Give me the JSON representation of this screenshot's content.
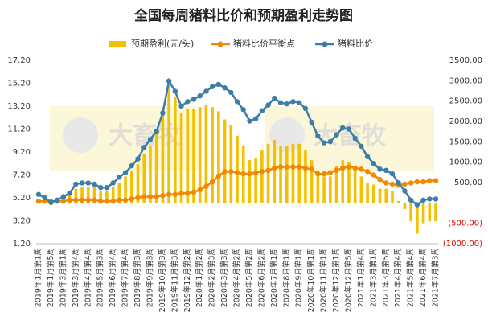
{
  "watermark": "大畜牧",
  "chart_data": {
    "type": "combo",
    "title": "全国每周猪料比价和预期盈利走势图",
    "categories": [
      "2019年1月第1周",
      null,
      "2019年1月第5周",
      null,
      "2019年3月第1周",
      null,
      "2019年3月第4周",
      null,
      "2019年4月第4周",
      null,
      "2019年5月第3周",
      null,
      "2019年6月第4周",
      null,
      "2019年7月第4周",
      null,
      "2019年8月第3周",
      null,
      "2019年9月第3周",
      null,
      "2019年10月第3周",
      null,
      "2019年11月第3周",
      null,
      "2019年12月第2周",
      null,
      "2020年1月第2周",
      null,
      "2020年2月第3周",
      null,
      "2020年3月第3周",
      null,
      "2020年4月第2周",
      null,
      "2020年5月第2周",
      null,
      "2020年6月第2周",
      null,
      "2020年7月第1周",
      null,
      "2020年8月第1周",
      null,
      "2020年9月第1周",
      null,
      "2020年10月第1周",
      null,
      "2020年11月第1周",
      null,
      "2020年12月第1周",
      null,
      "2020年12月第5周",
      null,
      "2021年1月第4周",
      null,
      "2021年3月第1周",
      null,
      "2021年3月第5周",
      null,
      "2021年4月第4周",
      null,
      "2021年5月第4周",
      null,
      "2021年6月第4周",
      null,
      "2021年7月第3周"
    ],
    "series": [
      {
        "name": "预期盈利(元/头)",
        "type": "bar",
        "axis": "y2",
        "color": "#f5c000",
        "values": [
          50,
          0,
          -50,
          30,
          100,
          200,
          350,
          380,
          400,
          380,
          300,
          300,
          400,
          500,
          650,
          800,
          950,
          1200,
          1400,
          1700,
          2200,
          2900,
          2600,
          2200,
          2300,
          2300,
          2350,
          2400,
          2350,
          2250,
          2050,
          1900,
          1650,
          1400,
          1050,
          1100,
          1300,
          1450,
          1550,
          1400,
          1400,
          1450,
          1450,
          1300,
          1050,
          800,
          650,
          650,
          900,
          1050,
          1000,
          800,
          650,
          500,
          450,
          350,
          350,
          300,
          50,
          -150,
          -450,
          -750,
          -500,
          -450,
          -450
        ]
      },
      {
        "name": "猪料比价平衡点",
        "type": "line",
        "color": "#f08a00",
        "values": [
          4.9,
          4.9,
          4.9,
          4.9,
          4.9,
          5.0,
          5.0,
          5.0,
          5.0,
          5.0,
          4.9,
          4.9,
          4.9,
          5.0,
          5.0,
          5.1,
          5.2,
          5.3,
          5.3,
          5.3,
          5.4,
          5.5,
          5.5,
          5.6,
          5.6,
          5.7,
          5.9,
          6.2,
          6.6,
          7.1,
          7.5,
          7.5,
          7.4,
          7.3,
          7.3,
          7.4,
          7.5,
          7.6,
          7.8,
          7.9,
          7.9,
          7.9,
          7.9,
          7.8,
          7.7,
          7.3,
          7.3,
          7.4,
          7.6,
          7.8,
          7.9,
          7.8,
          7.7,
          7.5,
          7.2,
          6.8,
          6.5,
          6.4,
          6.3,
          6.4,
          6.5,
          6.6,
          6.6,
          6.7,
          6.7
        ]
      },
      {
        "name": "猪料比价",
        "type": "line",
        "color": "#3d7ea6",
        "values": [
          5.5,
          5.2,
          4.8,
          5.0,
          5.3,
          5.6,
          6.4,
          6.5,
          6.5,
          6.4,
          6.1,
          6.1,
          6.5,
          7.0,
          7.4,
          8.0,
          8.6,
          9.6,
          10.3,
          11.0,
          12.6,
          15.4,
          14.5,
          13.2,
          13.6,
          13.8,
          14.1,
          14.5,
          14.9,
          15.1,
          14.8,
          14.4,
          13.6,
          12.9,
          11.9,
          12.1,
          12.8,
          13.3,
          13.9,
          13.5,
          13.4,
          13.6,
          13.5,
          13.0,
          11.8,
          10.6,
          10.0,
          10.1,
          10.7,
          11.3,
          11.2,
          10.4,
          9.7,
          8.8,
          8.2,
          7.7,
          7.6,
          7.3,
          6.5,
          5.8,
          5.0,
          4.6,
          5.0,
          5.1,
          5.1
        ]
      }
    ],
    "ylim": [
      1.2,
      17.2
    ],
    "yticks": [
      {
        "value": 1.2,
        "label": "1.20"
      },
      {
        "value": 3.2,
        "label": "3.20"
      },
      {
        "value": 5.2,
        "label": "5.20"
      },
      {
        "value": 7.2,
        "label": "7.20"
      },
      {
        "value": 9.2,
        "label": "9.20"
      },
      {
        "value": 11.2,
        "label": "11.20"
      },
      {
        "value": 13.2,
        "label": "13.20"
      },
      {
        "value": 15.2,
        "label": "15.20"
      },
      {
        "value": 17.2,
        "label": "17.20"
      }
    ],
    "y2lim": [
      -1000,
      3500
    ],
    "y2ticks": [
      {
        "value": 3500,
        "label": "3500.00"
      },
      {
        "value": 3000,
        "label": "3000.00"
      },
      {
        "value": 2500,
        "label": "2500.00"
      },
      {
        "value": 2000,
        "label": "2000.00"
      },
      {
        "value": 1500,
        "label": "1500.00"
      },
      {
        "value": 1000,
        "label": "1000.00"
      },
      {
        "value": 500,
        "label": "500.00"
      },
      {
        "value": -500,
        "label": "(500.00)"
      },
      {
        "value": -1000,
        "label": "(1000.00)"
      }
    ],
    "negative_color": "#e00000",
    "grid": false
  }
}
